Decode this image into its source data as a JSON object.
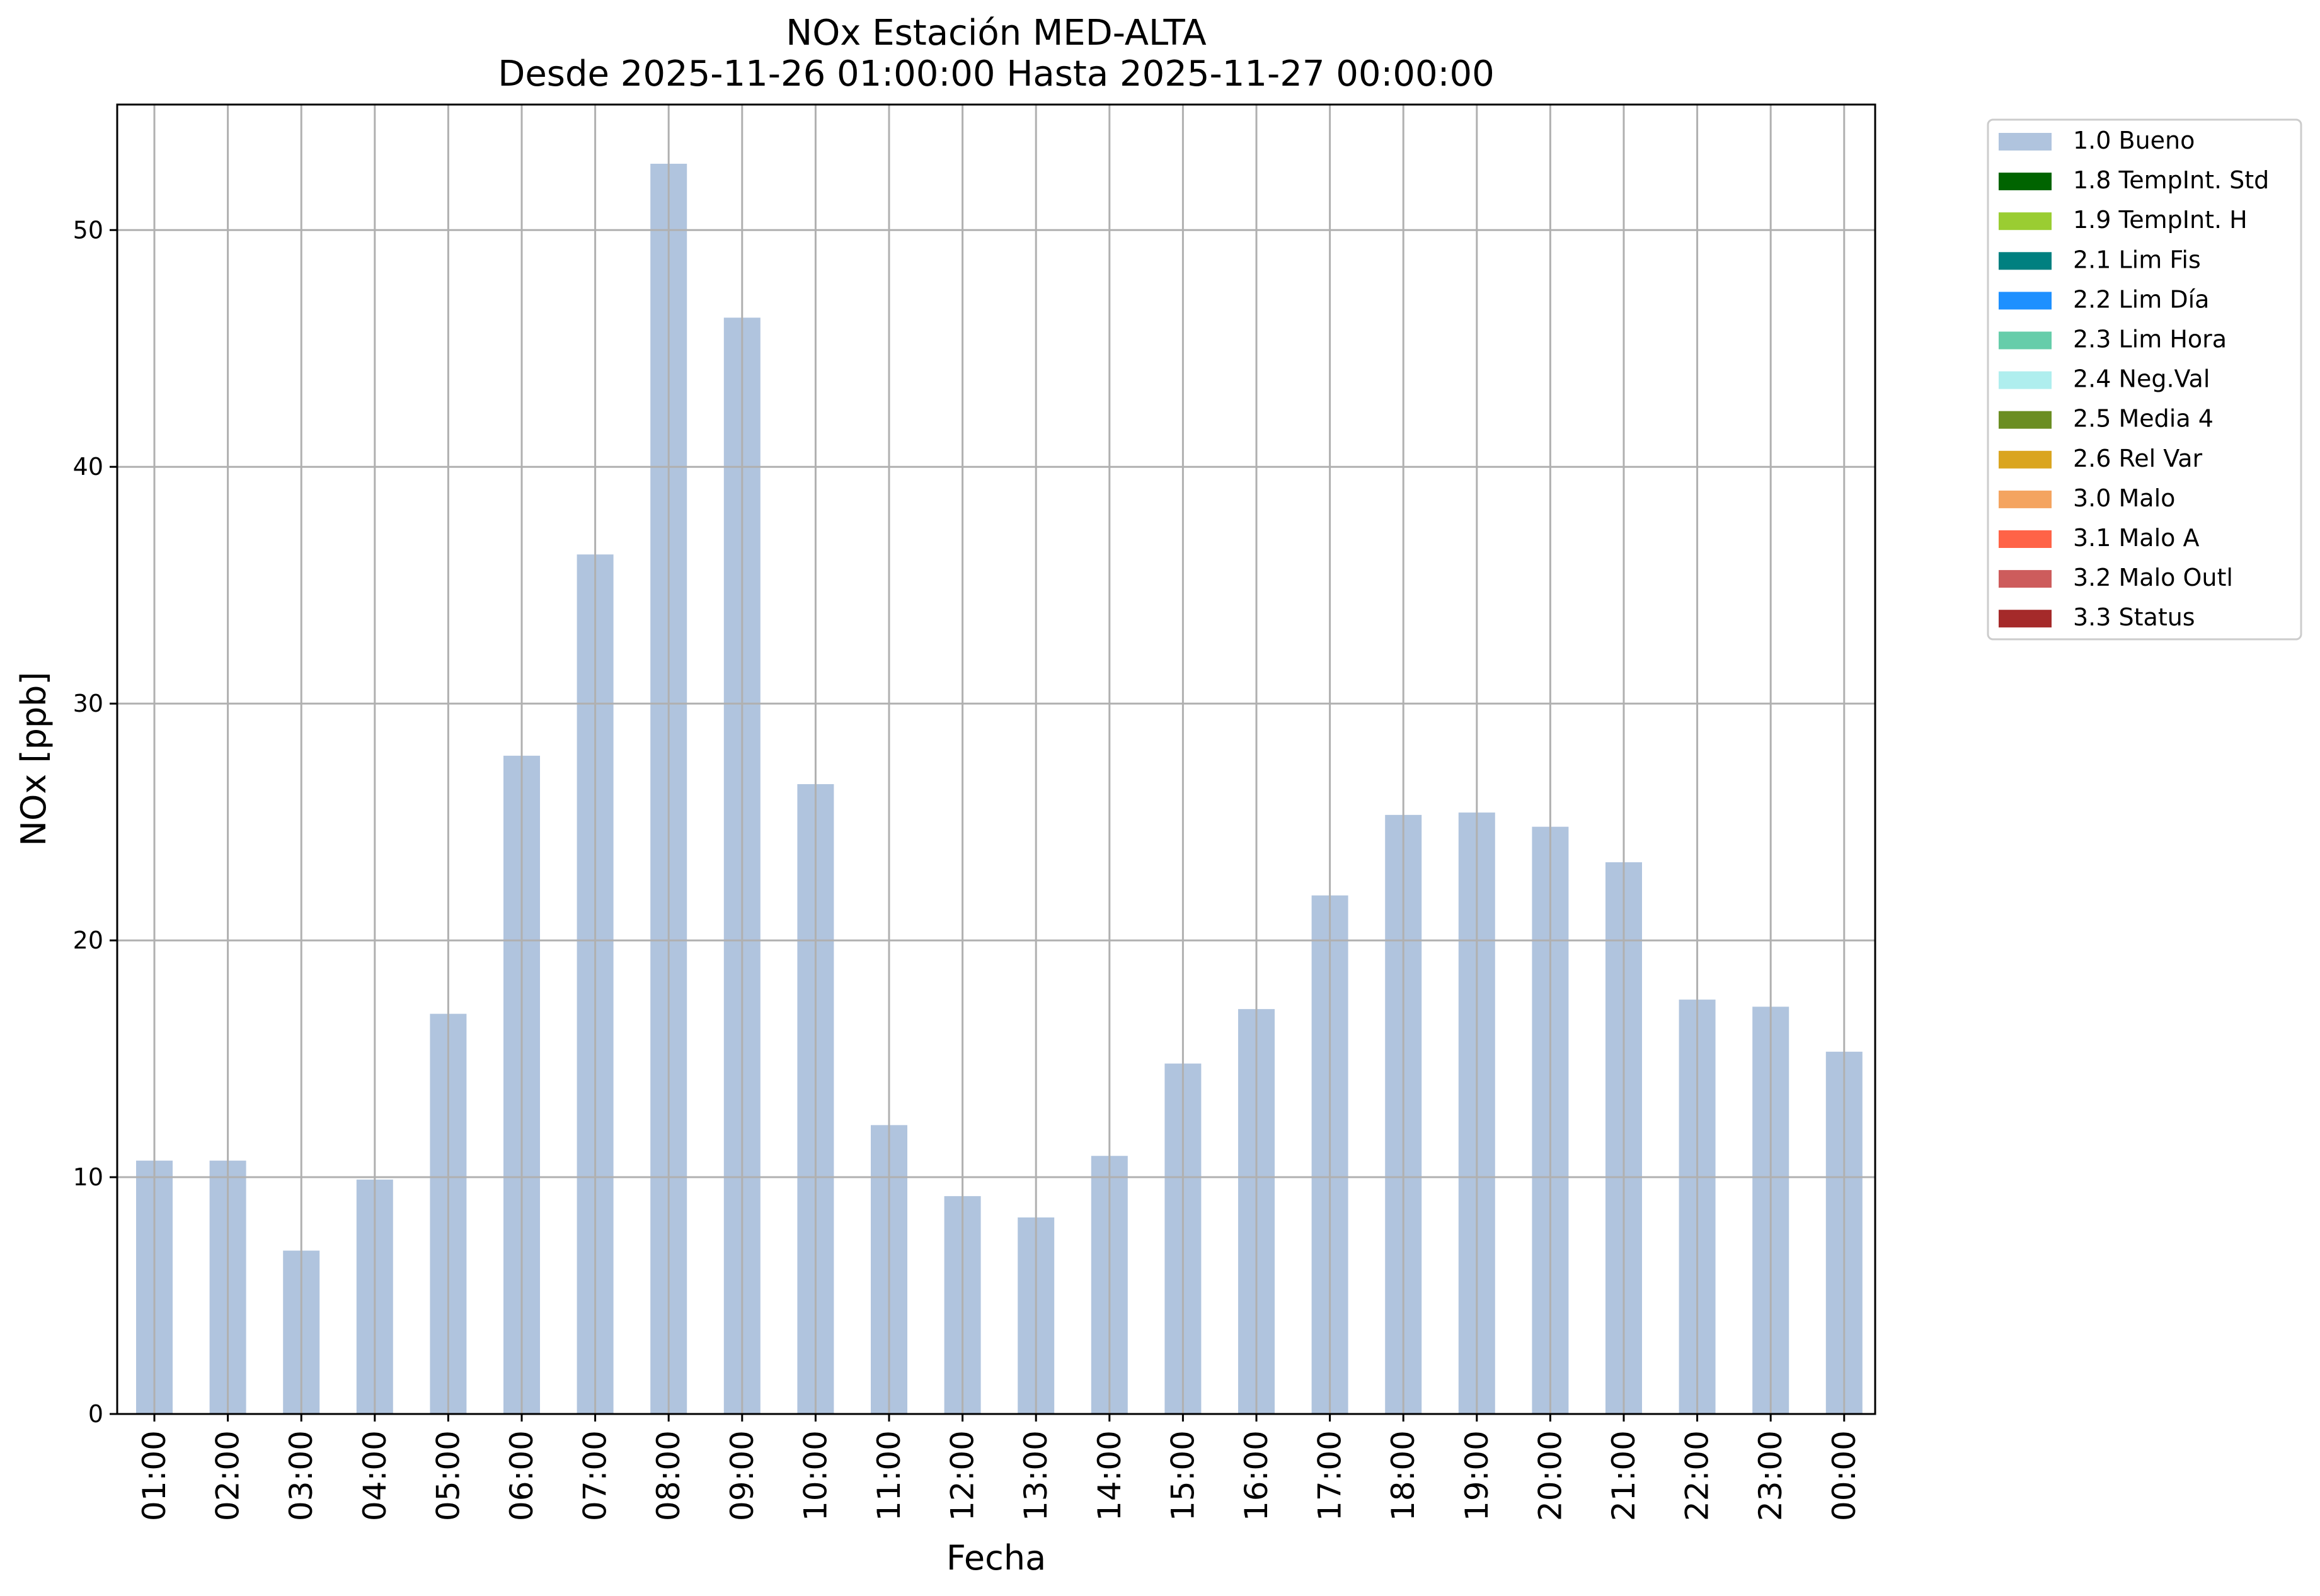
{
  "chart_data": {
    "type": "bar",
    "title_line1": "NOx Estación MED-ALTA",
    "title_line2": "Desde 2025-11-26 01:00:00 Hasta 2025-11-27 00:00:00",
    "xlabel": "Fecha",
    "ylabel": "NOx [ppb]",
    "ylim": [
      0,
      55.3
    ],
    "yticks": [
      "0",
      "10",
      "20",
      "30",
      "40",
      "50"
    ],
    "ytick_values": [
      0,
      10,
      20,
      30,
      40,
      50
    ],
    "grid": true,
    "legend_position": "outside-right",
    "categories": [
      "01:00",
      "02:00",
      "03:00",
      "04:00",
      "05:00",
      "06:00",
      "07:00",
      "08:00",
      "09:00",
      "10:00",
      "11:00",
      "12:00",
      "13:00",
      "14:00",
      "15:00",
      "16:00",
      "17:00",
      "18:00",
      "19:00",
      "20:00",
      "21:00",
      "22:00",
      "23:00",
      "00:00"
    ],
    "series": [
      {
        "name": "1.0 Bueno",
        "color": "#b0c4de",
        "values": [
          10.7,
          10.7,
          6.9,
          9.9,
          16.9,
          27.8,
          36.3,
          52.8,
          46.3,
          26.6,
          12.2,
          9.2,
          8.3,
          10.9,
          14.8,
          17.1,
          21.9,
          25.3,
          25.4,
          24.8,
          23.3,
          17.5,
          17.2,
          15.3
        ]
      }
    ],
    "legend": [
      {
        "label": "1.0 Bueno",
        "color": "#b0c4de"
      },
      {
        "label": "1.8 TempInt. Std",
        "color": "#006400"
      },
      {
        "label": "1.9 TempInt. H",
        "color": "#9acd32"
      },
      {
        "label": "2.1 Lim Fis",
        "color": "#008080"
      },
      {
        "label": "2.2 Lim Día",
        "color": "#1e90ff"
      },
      {
        "label": "2.3 Lim Hora",
        "color": "#66cdaa"
      },
      {
        "label": "2.4 Neg.Val",
        "color": "#afeeee"
      },
      {
        "label": "2.5 Media 4",
        "color": "#6b8e23"
      },
      {
        "label": "2.6 Rel Var",
        "color": "#daa520"
      },
      {
        "label": "3.0 Malo",
        "color": "#f4a460"
      },
      {
        "label": "3.1 Malo A",
        "color": "#ff6347"
      },
      {
        "label": "3.2 Malo Outl",
        "color": "#cd5c5c"
      },
      {
        "label": "3.3 Status",
        "color": "#a52a2a"
      }
    ]
  }
}
